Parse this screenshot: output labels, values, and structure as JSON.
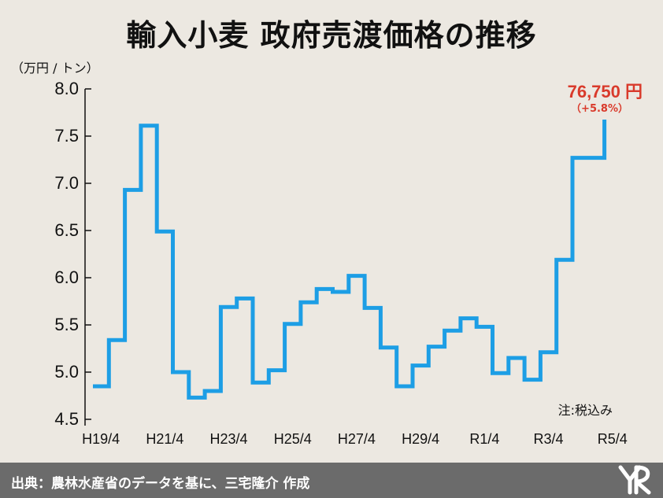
{
  "title": "輸入小麦 政府売渡価格の推移",
  "unit_label": "（万円 / トン）",
  "annotation": {
    "value": "76,750 円",
    "change": "（+5.8%）",
    "note": "注:税込み"
  },
  "footer": {
    "source": "出典：農林水産省のデータを基に、三宅隆介 作成"
  },
  "colors": {
    "line": "#1d9ee5",
    "highlight": "#d93a2b",
    "footer_bg": "#6b6b6b",
    "background": "#ece8e1"
  },
  "chart_data": {
    "type": "line",
    "step": true,
    "xlabel": "",
    "ylabel": "（万円 / トン）",
    "ylim": [
      4.5,
      8.0
    ],
    "yticks": [
      "8.0",
      "7.5",
      "7.0",
      "6.5",
      "6.0",
      "5.5",
      "5.0",
      "4.5"
    ],
    "xticks": [
      "H19/4",
      "H21/4",
      "H23/4",
      "H25/4",
      "H27/4",
      "H29/4",
      "R1/4",
      "R3/4",
      "R5/4"
    ],
    "x_periods": [
      "H19/4",
      "H19/10",
      "H20/4",
      "H20/10",
      "H21/4",
      "H21/10",
      "H22/4",
      "H22/10",
      "H23/4",
      "H23/10",
      "H24/4",
      "H24/10",
      "H25/4",
      "H25/10",
      "H26/4",
      "H26/10",
      "H27/4",
      "H27/10",
      "H28/4",
      "H28/10",
      "H29/4",
      "H29/10",
      "H30/4",
      "H30/10",
      "R1/4",
      "R1/10",
      "R2/4",
      "R2/10",
      "R3/4",
      "R3/10",
      "R4/4",
      "R4/10",
      "R5/4"
    ],
    "series": [
      {
        "values": [
          4.85,
          5.34,
          6.93,
          7.61,
          6.49,
          5.0,
          4.73,
          4.8,
          5.69,
          5.78,
          4.89,
          5.02,
          5.51,
          5.74,
          5.88,
          5.85,
          6.02,
          5.68,
          5.26,
          4.85,
          5.07,
          5.27,
          5.44,
          5.57,
          5.48,
          4.99,
          5.15,
          4.92,
          5.21,
          6.19,
          7.27,
          7.27,
          7.675
        ]
      }
    ],
    "grid": false,
    "legend": "none"
  }
}
